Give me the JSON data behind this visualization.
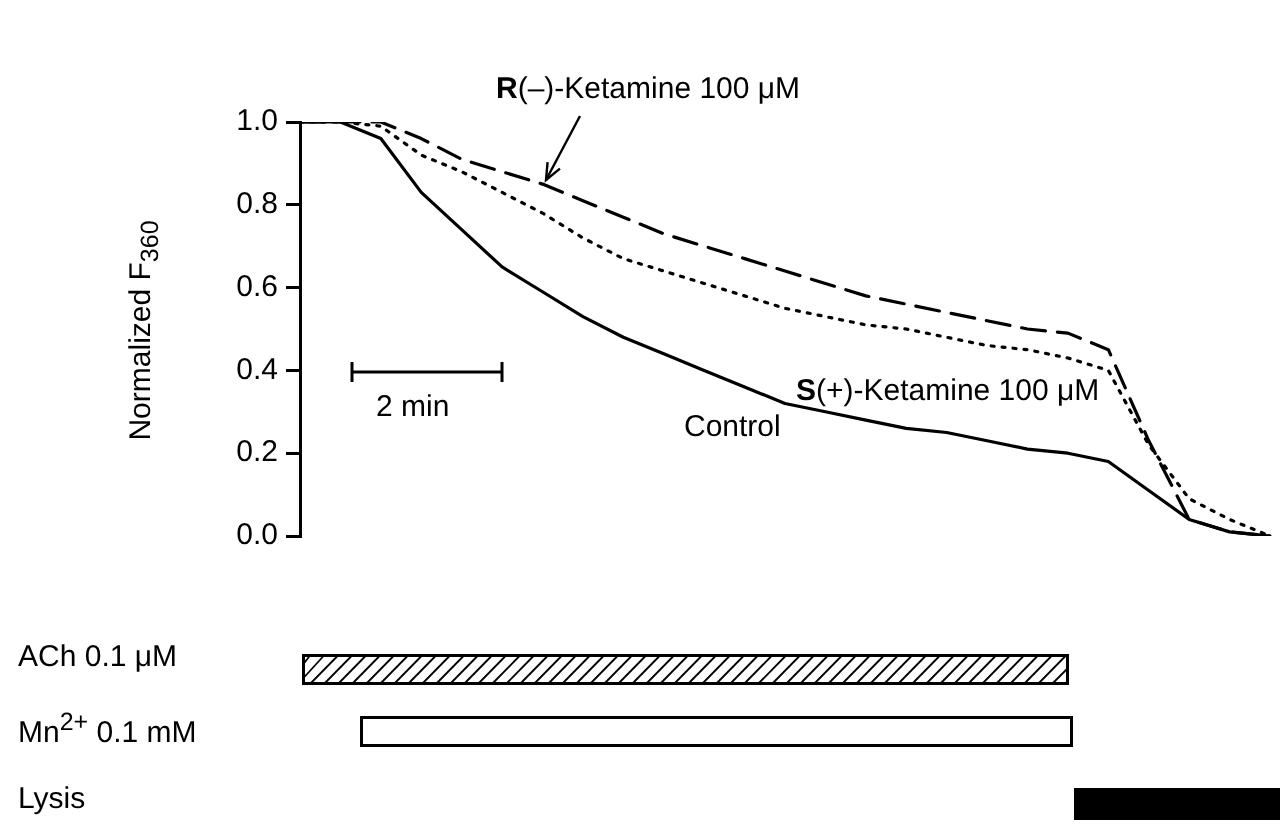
{
  "chart_data": {
    "type": "line",
    "ylabel": "Normalized F$_{360}$",
    "categories": [
      null,
      null,
      null,
      null,
      null,
      null,
      null,
      null,
      null,
      null,
      null,
      null,
      null,
      null,
      null,
      null,
      null,
      null,
      null,
      null,
      null,
      null,
      null,
      null,
      null
    ],
    "series": [
      {
        "name": "Control",
        "color": "#000000",
        "line_style": "solid",
        "values": [
          1.0,
          1.0,
          0.96,
          0.83,
          0.74,
          0.65,
          0.59,
          0.53,
          0.48,
          0.44,
          0.4,
          0.36,
          0.32,
          0.3,
          0.28,
          0.26,
          0.25,
          0.23,
          0.21,
          0.2,
          0.18,
          0.11,
          0.04,
          0.01,
          0.0
        ]
      },
      {
        "name": "R(–)-Ketamine 100 μM",
        "color": "#000000",
        "line_style": "dashed",
        "values": [
          1.0,
          1.0,
          1.0,
          0.96,
          0.91,
          0.88,
          0.85,
          0.81,
          0.77,
          0.73,
          0.7,
          0.67,
          0.64,
          0.61,
          0.58,
          0.56,
          0.54,
          0.52,
          0.5,
          0.49,
          0.45,
          0.23,
          0.04,
          0.01,
          0.0
        ]
      },
      {
        "name": "S(+)-Ketamine 100 μM",
        "color": "#000000",
        "line_style": "dotted",
        "values": [
          1.0,
          1.0,
          0.99,
          0.92,
          0.88,
          0.83,
          0.78,
          0.72,
          0.67,
          0.64,
          0.61,
          0.58,
          0.55,
          0.53,
          0.51,
          0.5,
          0.48,
          0.46,
          0.45,
          0.43,
          0.4,
          0.22,
          0.09,
          0.04,
          0.0
        ]
      }
    ],
    "ylim": [
      0,
      1
    ],
    "yticks": [
      {
        "value": 0,
        "label": "0.0"
      },
      0.2,
      0.4,
      0.6,
      0.8,
      {
        "value": 1,
        "label": "1.0"
      }
    ],
    "grid": false,
    "legend": false,
    "marker": "none",
    "tick_labels": "y",
    "annotations": [
      "2 min",
      "ACh 0.1 μM",
      "Mn$^{2+}$ 0.1 mM",
      "Lysis"
    ]
  }
}
